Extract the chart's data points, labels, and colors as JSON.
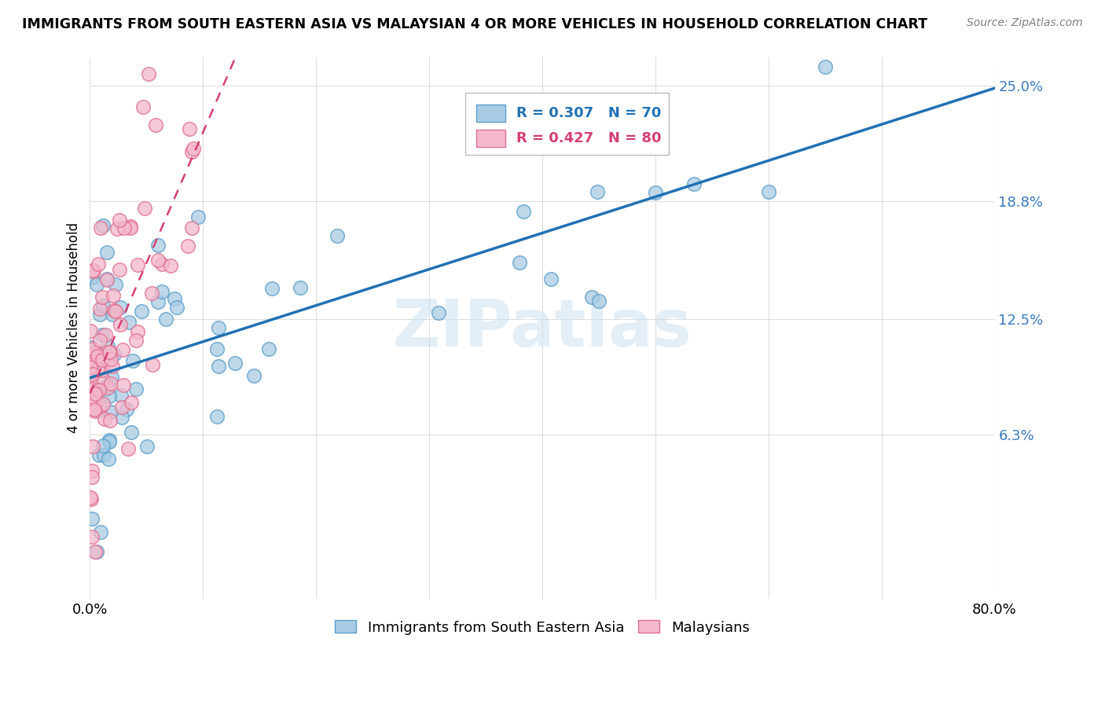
{
  "title": "IMMIGRANTS FROM SOUTH EASTERN ASIA VS MALAYSIAN 4 OR MORE VEHICLES IN HOUSEHOLD CORRELATION CHART",
  "source": "Source: ZipAtlas.com",
  "ylabel": "4 or more Vehicles in Household",
  "xlim": [
    0.0,
    0.8
  ],
  "ylim": [
    -0.025,
    0.265
  ],
  "watermark": "ZIPatlas",
  "legend_blue_r": "R = 0.307",
  "legend_blue_n": "N = 70",
  "legend_pink_r": "R = 0.427",
  "legend_pink_n": "N = 80",
  "blue_fill": "#a8cce4",
  "blue_edge": "#5b9ec9",
  "pink_fill": "#f4b8cb",
  "pink_edge": "#e07090",
  "blue_line_color": "#2171b5",
  "pink_line_color": "#d44070",
  "background_color": "#ffffff",
  "grid_color": "#dddddd",
  "ytick_vals": [
    0.063,
    0.125,
    0.188,
    0.25
  ],
  "ytick_labels": [
    "6.3%",
    "12.5%",
    "18.8%",
    "25.0%"
  ],
  "xtick_vals": [
    0.0,
    0.1,
    0.2,
    0.3,
    0.4,
    0.5,
    0.6,
    0.7,
    0.8
  ],
  "xtick_labels": [
    "0.0%",
    "",
    "",
    "",
    "",
    "",
    "",
    "",
    "80.0%"
  ]
}
